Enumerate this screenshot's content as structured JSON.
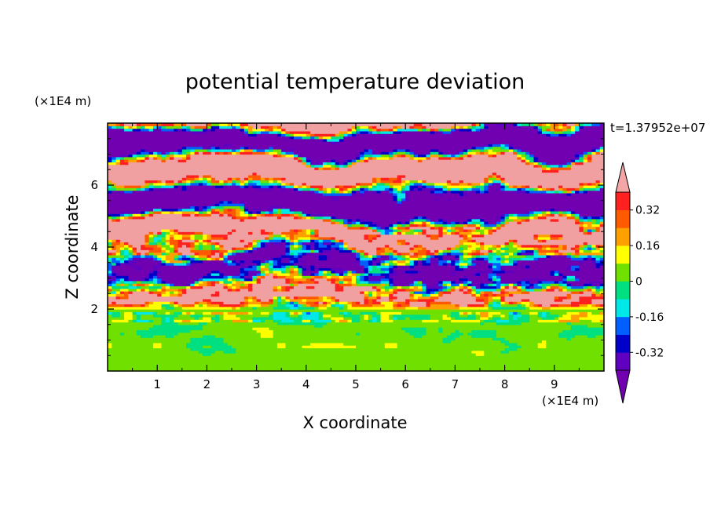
{
  "chart_data": {
    "type": "heatmap",
    "title": "potential temperature deviation",
    "xlabel": "X coordinate",
    "ylabel": "Z coordinate",
    "x_unit": "(×1E4 m)",
    "y_unit": "(×1E4 m)",
    "time_label": "t=1.37952e+07",
    "xlim": [
      0,
      10
    ],
    "ylim": [
      0,
      8
    ],
    "x_ticks": [
      "1",
      "2",
      "3",
      "4",
      "5",
      "6",
      "7",
      "8",
      "9"
    ],
    "y_ticks": [
      "2",
      "4",
      "6"
    ],
    "colorbar": {
      "levels": [
        -0.4,
        -0.32,
        -0.24,
        -0.16,
        -0.08,
        0,
        0.08,
        0.16,
        0.24,
        0.32,
        0.4
      ],
      "tick_labels": [
        "0.32",
        "0.16",
        "0",
        "-0.16",
        "-0.32"
      ],
      "tick_values": [
        0.32,
        0.16,
        0,
        -0.16,
        -0.32
      ],
      "colors_high_to_low": [
        "#f0a0a0",
        "#ff2020",
        "#ff5a00",
        "#ffa000",
        "#ffff00",
        "#70e000",
        "#00e080",
        "#00e8e8",
        "#0060ff",
        "#0000c8",
        "#6000c0",
        "#7000b0"
      ],
      "over_color": "#f4a6a6",
      "under_color": "#7000b0"
    },
    "field_layers": [
      {
        "z_range": [
          6.7,
          8.0
        ],
        "dominant": "above 0.4 alternating with below -0.4"
      },
      {
        "z_range": [
          4.6,
          6.7
        ],
        "dominant": "banded above 0.4 and below -0.4 with sharp fronts"
      },
      {
        "z_range": [
          2.0,
          4.6
        ],
        "dominant": "turbulent mixed -0.4 to 0.4"
      },
      {
        "z_range": [
          0.0,
          2.0
        ],
        "dominant": "near 0 (-0.08 to 0.08)"
      }
    ]
  }
}
